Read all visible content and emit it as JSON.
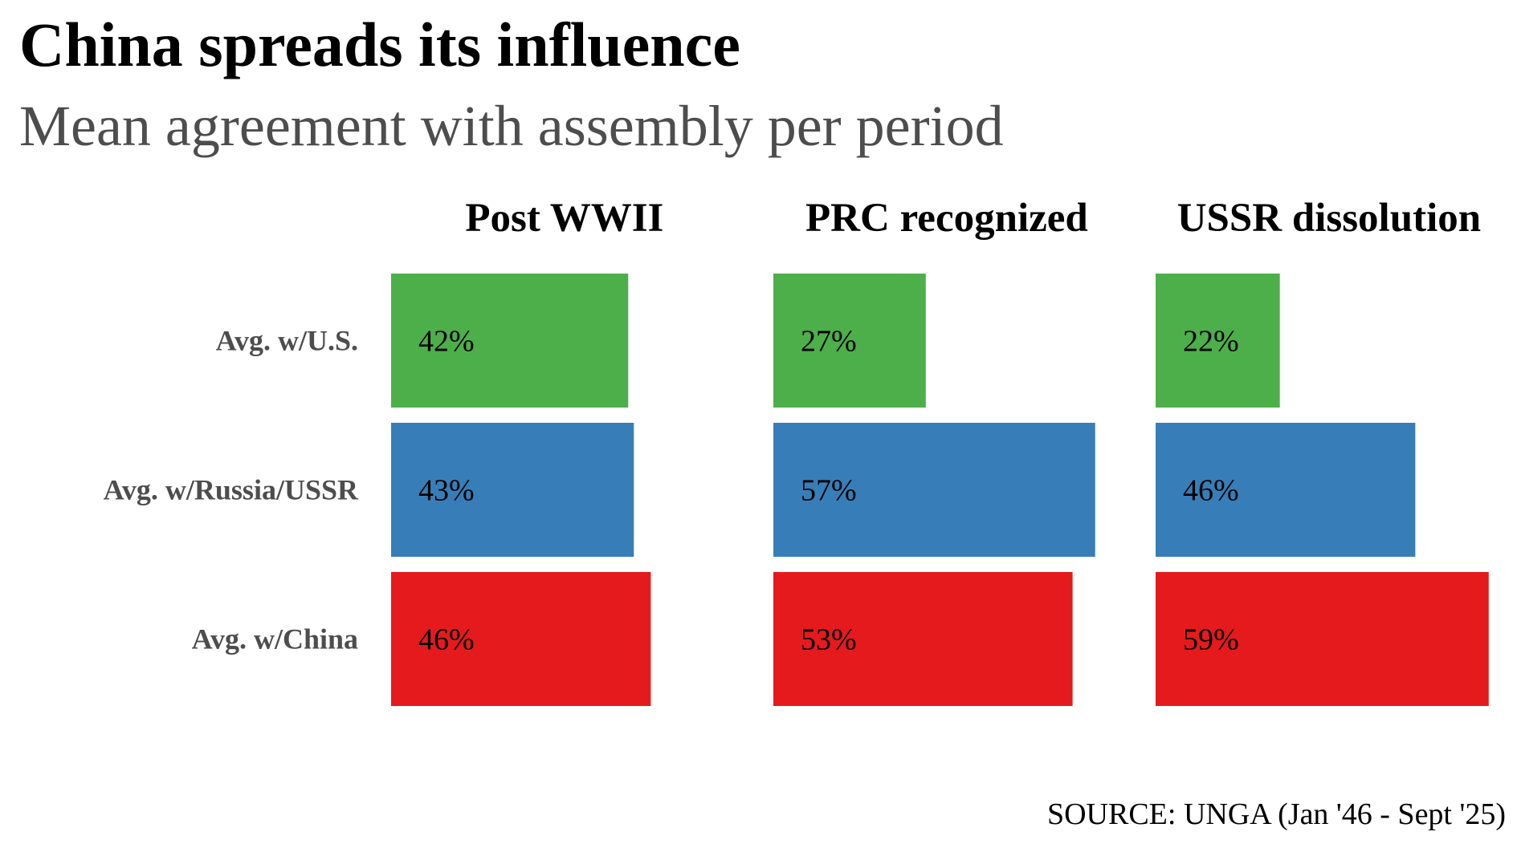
{
  "chart_data": {
    "type": "bar",
    "orientation": "horizontal",
    "faceted": true,
    "title": "China spreads its influence",
    "subtitle": "Mean agreement with assembly per period",
    "source": "SOURCE: UNGA (Jan '46 - Sept '25)",
    "panels": [
      "Post WWII",
      "PRC recognized",
      "USSR dissolution"
    ],
    "categories": [
      "Avg. w/U.S.",
      "Avg. w/Russia/USSR",
      "Avg. w/China"
    ],
    "series": [
      {
        "name": "Avg. w/U.S.",
        "color": "#4daf4a",
        "values": [
          42,
          27,
          22
        ],
        "labels": [
          "42%",
          "27%",
          "22%"
        ]
      },
      {
        "name": "Avg. w/Russia/USSR",
        "color": "#377eb8",
        "values": [
          43,
          57,
          46
        ],
        "labels": [
          "43%",
          "57%",
          "46%"
        ]
      },
      {
        "name": "Avg. w/China",
        "color": "#e41a1c",
        "values": [
          46,
          53,
          59
        ],
        "labels": [
          "46%",
          "53%",
          "59%"
        ]
      }
    ],
    "xlim": [
      0,
      60
    ],
    "grid": false,
    "legend": "none"
  },
  "colors": {
    "title": "#000000",
    "subtitle": "#4d4d4d",
    "row_label": "#4d4d4d",
    "bar_text": "#000000"
  }
}
